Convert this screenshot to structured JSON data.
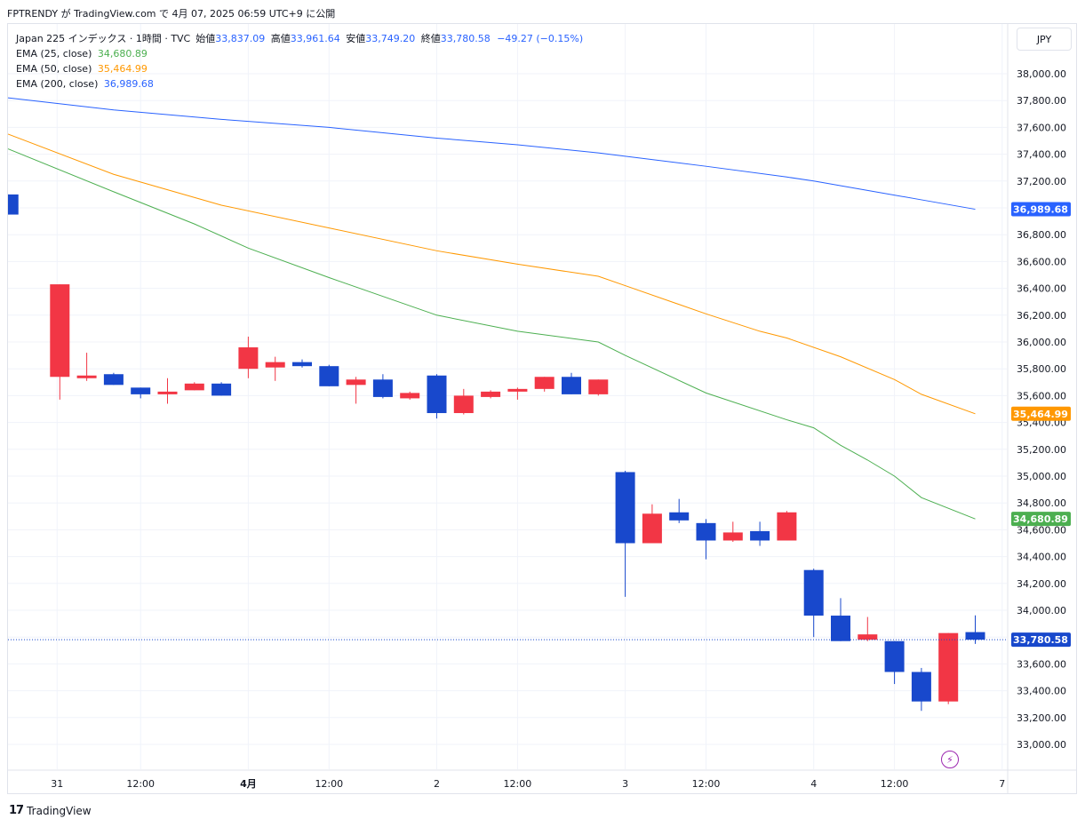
{
  "header": {
    "publish_line": "FPTRENDY が TradingView.com で 4月 07, 2025 06:59 UTC+9 に公開"
  },
  "legend": {
    "symbol": "Japan 225 インデックス · 1時間 · TVC",
    "open_label": "始値",
    "open": "33,837.09",
    "high_label": "高値",
    "high": "33,961.64",
    "low_label": "安値",
    "low": "33,749.20",
    "close_label": "終値",
    "close": "33,780.58",
    "change": "−49.27 (−0.15%)",
    "ema25_label": "EMA (25, close)",
    "ema25_value": "34,680.89",
    "ema50_label": "EMA (50, close)",
    "ema50_value": "35,464.99",
    "ema200_label": "EMA (200, close)",
    "ema200_value": "36,989.68"
  },
  "currency": "JPY",
  "footer": {
    "brand": "TradingView",
    "logo": "17"
  },
  "colors": {
    "up": "#f23645",
    "down": "#1848cc",
    "ema25": "#4caf50",
    "ema50": "#ff9800",
    "ema200": "#2962ff",
    "grid": "#f0f3fa"
  },
  "icons": {
    "flash": "lightning-icon"
  },
  "chart_data": {
    "type": "candlestick",
    "y_axis": {
      "ticks": [
        "33,000.00",
        "33,200.00",
        "33,400.00",
        "33,600.00",
        "33,800.00",
        "34,000.00",
        "34,200.00",
        "34,400.00",
        "34,600.00",
        "34,800.00",
        "35,000.00",
        "35,200.00",
        "35,400.00",
        "35,600.00",
        "35,800.00",
        "36,000.00",
        "36,200.00",
        "36,400.00",
        "36,600.00",
        "36,800.00",
        "37,000.00",
        "37,200.00",
        "37,400.00",
        "37,600.00",
        "37,800.00",
        "38,000.00"
      ],
      "min": 32900,
      "max": 38100
    },
    "x_axis": {
      "ticks": [
        {
          "slot": 0.9,
          "label": "31"
        },
        {
          "slot": 4,
          "label": "12:00"
        },
        {
          "slot": 8,
          "label": "4月"
        },
        {
          "slot": 11,
          "label": "12:00"
        },
        {
          "slot": 15,
          "label": "2"
        },
        {
          "slot": 18,
          "label": "12:00"
        },
        {
          "slot": 22,
          "label": "3"
        },
        {
          "slot": 25,
          "label": "12:00"
        },
        {
          "slot": 29,
          "label": "4"
        },
        {
          "slot": 32,
          "label": "12:00"
        },
        {
          "slot": 36,
          "label": "7"
        }
      ]
    },
    "candles": [
      {
        "slot": -0.9,
        "open": 37100,
        "high": 37100,
        "low": 36950,
        "close": 36950
      },
      {
        "slot": 1,
        "open": 35740,
        "high": 36430,
        "low": 35570,
        "close": 36430
      },
      {
        "slot": 2,
        "open": 35730,
        "high": 35920,
        "low": 35710,
        "close": 35750
      },
      {
        "slot": 3,
        "open": 35760,
        "high": 35770,
        "low": 35680,
        "close": 35680
      },
      {
        "slot": 4,
        "open": 35660,
        "high": 35660,
        "low": 35580,
        "close": 35610
      },
      {
        "slot": 5,
        "open": 35610,
        "high": 35730,
        "low": 35540,
        "close": 35630
      },
      {
        "slot": 6,
        "open": 35640,
        "high": 35700,
        "low": 35640,
        "close": 35690
      },
      {
        "slot": 7,
        "open": 35690,
        "high": 35700,
        "low": 35600,
        "close": 35600
      },
      {
        "slot": 8,
        "open": 35800,
        "high": 36040,
        "low": 35730,
        "close": 35960
      },
      {
        "slot": 9,
        "open": 35810,
        "high": 35890,
        "low": 35710,
        "close": 35850
      },
      {
        "slot": 10,
        "open": 35850,
        "high": 35870,
        "low": 35810,
        "close": 35820
      },
      {
        "slot": 11,
        "open": 35820,
        "high": 35830,
        "low": 35670,
        "close": 35670
      },
      {
        "slot": 12,
        "open": 35680,
        "high": 35740,
        "low": 35540,
        "close": 35720
      },
      {
        "slot": 13,
        "open": 35720,
        "high": 35760,
        "low": 35580,
        "close": 35590
      },
      {
        "slot": 14,
        "open": 35580,
        "high": 35630,
        "low": 35570,
        "close": 35620
      },
      {
        "slot": 15,
        "open": 35750,
        "high": 35760,
        "low": 35430,
        "close": 35470
      },
      {
        "slot": 16,
        "open": 35470,
        "high": 35650,
        "low": 35460,
        "close": 35600
      },
      {
        "slot": 17,
        "open": 35590,
        "high": 35640,
        "low": 35580,
        "close": 35630
      },
      {
        "slot": 18,
        "open": 35630,
        "high": 35660,
        "low": 35570,
        "close": 35650
      },
      {
        "slot": 19,
        "open": 35650,
        "high": 35740,
        "low": 35630,
        "close": 35740
      },
      {
        "slot": 20,
        "open": 35740,
        "high": 35770,
        "low": 35610,
        "close": 35610
      },
      {
        "slot": 21,
        "open": 35610,
        "high": 35720,
        "low": 35600,
        "close": 35720
      },
      {
        "slot": 22,
        "open": 35030,
        "high": 35040,
        "low": 34100,
        "close": 34500
      },
      {
        "slot": 23,
        "open": 34500,
        "high": 34790,
        "low": 34500,
        "close": 34720
      },
      {
        "slot": 24,
        "open": 34730,
        "high": 34830,
        "low": 34650,
        "close": 34670
      },
      {
        "slot": 25,
        "open": 34650,
        "high": 34680,
        "low": 34380,
        "close": 34520
      },
      {
        "slot": 26,
        "open": 34520,
        "high": 34660,
        "low": 34510,
        "close": 34580
      },
      {
        "slot": 27,
        "open": 34590,
        "high": 34660,
        "low": 34480,
        "close": 34520
      },
      {
        "slot": 28,
        "open": 34520,
        "high": 34740,
        "low": 34520,
        "close": 34730
      },
      {
        "slot": 29,
        "open": 34300,
        "high": 34310,
        "low": 33800,
        "close": 33960
      },
      {
        "slot": 30,
        "open": 33960,
        "high": 34090,
        "low": 33770,
        "close": 33770
      },
      {
        "slot": 31,
        "open": 33780,
        "high": 33950,
        "low": 33770,
        "close": 33820
      },
      {
        "slot": 32,
        "open": 33770,
        "high": 33770,
        "low": 33450,
        "close": 33540
      },
      {
        "slot": 33,
        "open": 33540,
        "high": 33570,
        "low": 33250,
        "close": 33320
      },
      {
        "slot": 34,
        "open": 33320,
        "high": 33830,
        "low": 33300,
        "close": 33830
      },
      {
        "slot": 35,
        "open": 33837.09,
        "high": 33961.64,
        "low": 33749.2,
        "close": 33780.58
      }
    ],
    "series": [
      {
        "name": "EMA (25, close)",
        "color": "#4caf50",
        "last": 34680.89,
        "points": [
          [
            -1,
            37440
          ],
          [
            3,
            37120
          ],
          [
            6,
            36880
          ],
          [
            8,
            36700
          ],
          [
            11,
            36480
          ],
          [
            15,
            36200
          ],
          [
            18,
            36080
          ],
          [
            21,
            36000
          ],
          [
            22,
            35900
          ],
          [
            25,
            35620
          ],
          [
            28,
            35420
          ],
          [
            29,
            35360
          ],
          [
            30,
            35230
          ],
          [
            31,
            35120
          ],
          [
            32,
            35000
          ],
          [
            33,
            34840
          ],
          [
            35,
            34680.89
          ]
        ]
      },
      {
        "name": "EMA (50, close)",
        "color": "#ff9800",
        "last": 35464.99,
        "points": [
          [
            -1,
            37550
          ],
          [
            3,
            37250
          ],
          [
            7,
            37020
          ],
          [
            11,
            36850
          ],
          [
            15,
            36680
          ],
          [
            18,
            36580
          ],
          [
            21,
            36490
          ],
          [
            22,
            36420
          ],
          [
            25,
            36210
          ],
          [
            27,
            36080
          ],
          [
            28,
            36030
          ],
          [
            30,
            35890
          ],
          [
            32,
            35720
          ],
          [
            33,
            35610
          ],
          [
            35,
            35464.99
          ]
        ]
      },
      {
        "name": "EMA (200, close)",
        "color": "#2962ff",
        "last": 36989.68,
        "points": [
          [
            -1,
            37820
          ],
          [
            3,
            37730
          ],
          [
            7,
            37660
          ],
          [
            11,
            37600
          ],
          [
            15,
            37520
          ],
          [
            18,
            37470
          ],
          [
            21,
            37410
          ],
          [
            25,
            37310
          ],
          [
            28,
            37230
          ],
          [
            29,
            37200
          ],
          [
            31,
            37130
          ],
          [
            33,
            37060
          ],
          [
            35,
            36989.68
          ]
        ]
      }
    ],
    "last_price": 33780.58
  }
}
